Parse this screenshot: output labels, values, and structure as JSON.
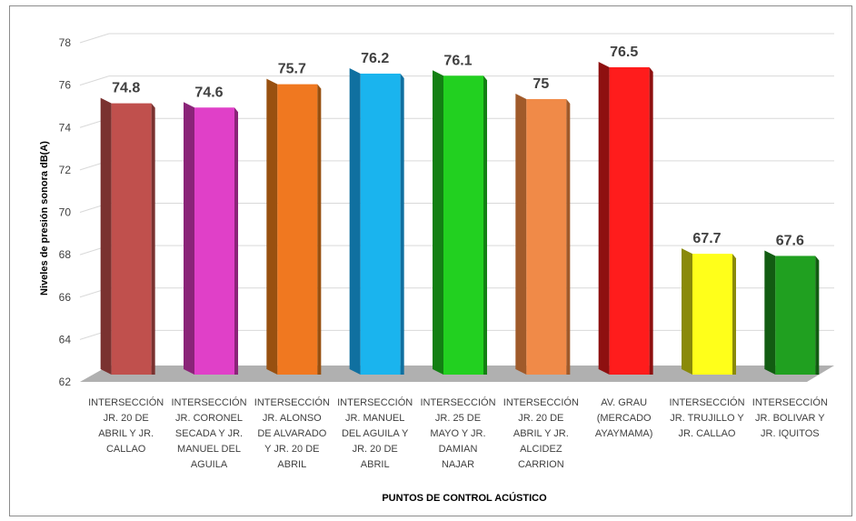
{
  "chart_data": {
    "type": "bar",
    "title": "",
    "xlabel": "PUNTOS DE CONTROL ACÚSTICO",
    "ylabel": "Niveles de presión sonora dB(A)",
    "ylim": [
      62,
      78
    ],
    "yticks": [
      62,
      64,
      66,
      68,
      70,
      72,
      74,
      76,
      78
    ],
    "grid": true,
    "legend": "none",
    "categories": [
      [
        "INTERSECCIÓN",
        "JR. 20 DE",
        "ABRIL Y JR.",
        "CALLAO"
      ],
      [
        "INTERSECCIÓN",
        "JR. CORONEL",
        "SECADA Y JR.",
        "MANUEL DEL",
        "AGUILA"
      ],
      [
        "INTERSECCIÓN",
        "JR. ALONSO",
        "DE ALVARADO",
        "Y JR. 20 DE",
        "ABRIL"
      ],
      [
        "INTERSECCIÓN",
        "JR. MANUEL",
        "DEL AGUILA Y",
        "JR. 20 DE",
        "ABRIL"
      ],
      [
        "INTERSECCIÓN",
        "JR. 25 DE",
        "MAYO Y JR.",
        "DAMIAN",
        "NAJAR"
      ],
      [
        "INTERSECCIÓN",
        "JR. 20 DE",
        "ABRIL Y JR.",
        "ALCIDEZ",
        "CARRION"
      ],
      [
        "AV. GRAU",
        "(MERCADO",
        "AYAYMAMA)"
      ],
      [
        "INTERSECCIÓN",
        "JR. TRUJILLO Y",
        "JR. CALLAO"
      ],
      [
        "INTERSECCIÓN",
        "JR. BOLIVAR Y",
        "JR. IQUITOS"
      ]
    ],
    "values": [
      74.8,
      74.6,
      75.7,
      76.2,
      76.1,
      75,
      76.5,
      67.7,
      67.6
    ],
    "data_labels": [
      "74.8",
      "74.6",
      "75.7",
      "76.2",
      "76.1",
      "75",
      "76.5",
      "67.7",
      "67.6"
    ],
    "colors": [
      "#c0504d",
      "#e040c8",
      "#f07820",
      "#1ab4ee",
      "#22d020",
      "#f08a48",
      "#ff1c1c",
      "#ffff1a",
      "#20a020"
    ],
    "side_colors": [
      "#7a3230",
      "#8a2478",
      "#985010",
      "#1070a0",
      "#138013",
      "#a05a2a",
      "#8e1010",
      "#8a8a0a",
      "#125c12"
    ]
  }
}
